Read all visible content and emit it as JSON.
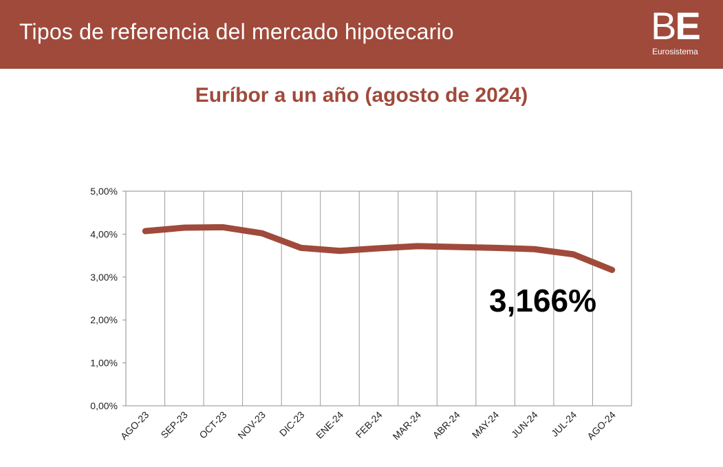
{
  "header": {
    "title": "Tipos de referencia del mercado hipotecario",
    "logo_mark_b": "B",
    "logo_mark_e": "E",
    "logo_sub": "Eurosistema"
  },
  "chart_data": {
    "type": "line",
    "title": "Euríbor a un año (agosto de 2024)",
    "xlabel": "",
    "ylabel": "",
    "categories": [
      "AGO-23",
      "SEP-23",
      "OCT-23",
      "NOV-23",
      "DIC-23",
      "ENE-24",
      "FEB-24",
      "MAR-24",
      "ABR-24",
      "MAY-24",
      "JUN-24",
      "JUL-24",
      "AGO-24"
    ],
    "series": [
      {
        "values": [
          4.07,
          4.15,
          4.16,
          4.02,
          3.68,
          3.61,
          3.67,
          3.72,
          3.7,
          3.68,
          3.65,
          3.53,
          3.166
        ]
      }
    ],
    "ylim": [
      0,
      5
    ],
    "yticks": [
      0,
      1,
      2,
      3,
      4,
      5
    ],
    "ytick_labels": [
      "0,00%",
      "1,00%",
      "2,00%",
      "3,00%",
      "4,00%",
      "5,00%"
    ],
    "grid": "vertical",
    "annotation": "3,166%",
    "line_color": "#a04a3b"
  }
}
